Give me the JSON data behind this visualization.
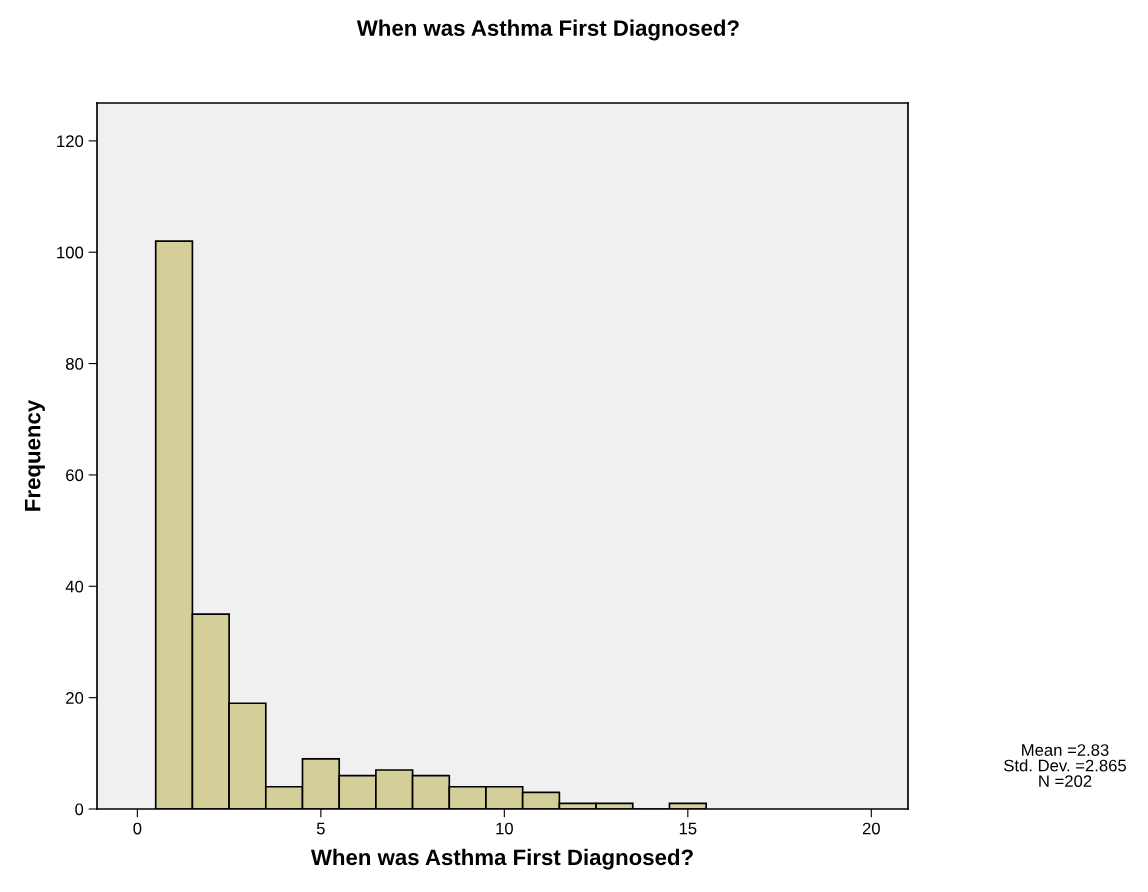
{
  "chart_data": {
    "type": "histogram",
    "title": "When was Asthma First Diagnosed?",
    "xlabel": "When was Asthma First Diagnosed?",
    "ylabel": "Frequency",
    "bins": [
      0.5,
      1.5,
      2.5,
      3.5,
      4.5,
      5.5,
      6.5,
      7.5,
      8.5,
      9.5,
      10.5,
      11.5,
      12.5,
      13.5,
      14.5,
      15.5
    ],
    "values": [
      102,
      35,
      19,
      4,
      9,
      6,
      7,
      6,
      4,
      4,
      3,
      1,
      1,
      0,
      1
    ],
    "color": "#d4cf98",
    "xlim": [
      -1.1,
      21.0
    ],
    "xticks": [
      0,
      5,
      10,
      15,
      20
    ],
    "ylim": [
      0,
      126.8
    ],
    "yticks": [
      0,
      20,
      40,
      60,
      80,
      100,
      120
    ],
    "grid": false,
    "annotations": [
      "Mean =2.83\nStd. Dev. =2.865\nN =202"
    ]
  }
}
